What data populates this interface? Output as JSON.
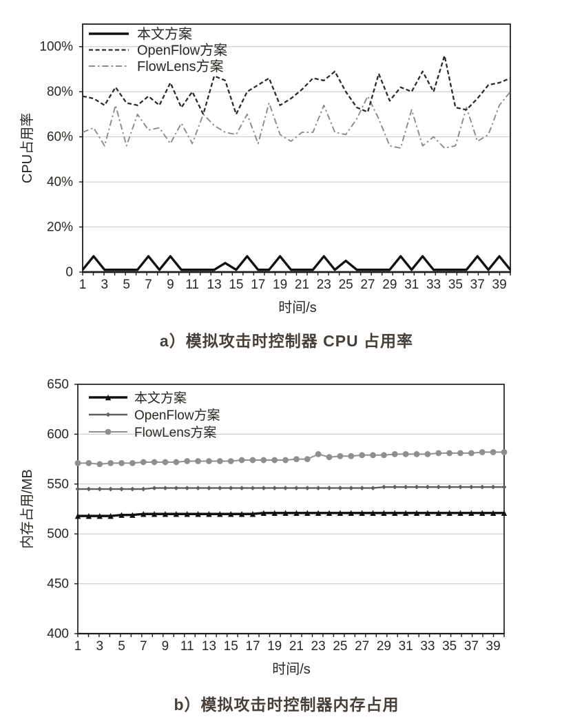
{
  "page": {
    "background": "#ffffff"
  },
  "captions": {
    "a": "a）模拟攻击时控制器 CPU 占用率",
    "b": "b）模拟攻击时控制器内存占用"
  },
  "colors": {
    "axis": "#1c1c1c",
    "grid": "#c6c6c6",
    "text": "#2a2723",
    "caption": "#463e38"
  },
  "chart_data": [
    {
      "id": "cpu",
      "type": "line",
      "title": "",
      "xlabel": "时间/s",
      "ylabel": "CPU占用率",
      "x": [
        1,
        2,
        3,
        4,
        5,
        6,
        7,
        8,
        9,
        10,
        11,
        12,
        13,
        14,
        15,
        16,
        17,
        18,
        19,
        20,
        21,
        22,
        23,
        24,
        25,
        26,
        27,
        28,
        29,
        30,
        31,
        32,
        33,
        34,
        35,
        36,
        37,
        38,
        39,
        40
      ],
      "x_tick_labels": [
        "1",
        "3",
        "5",
        "7",
        "9",
        "11",
        "13",
        "15",
        "17",
        "19",
        "21",
        "23",
        "25",
        "27",
        "29",
        "31",
        "33",
        "35",
        "37",
        "39"
      ],
      "y_ticks": [
        {
          "v": 0,
          "label": "0"
        },
        {
          "v": 20,
          "label": "20%"
        },
        {
          "v": 40,
          "label": "40%"
        },
        {
          "v": 60,
          "label": "60%"
        },
        {
          "v": 80,
          "label": "80%"
        },
        {
          "v": 100,
          "label": "100%"
        }
      ],
      "ylim": [
        0,
        110
      ],
      "grid": "horizontal",
      "legend_position": "top-left-inside",
      "series": [
        {
          "key": "flowlens",
          "name": "FlowLens方案",
          "color": "#8a8a8a",
          "dash": "dashdot",
          "width": 1.9,
          "marker": "none",
          "values": [
            62,
            64,
            56,
            74,
            56,
            70,
            63,
            64,
            57,
            66,
            57,
            70,
            65,
            62,
            61,
            70,
            57,
            75,
            61,
            58,
            62,
            62,
            74,
            62,
            61,
            68,
            78,
            68,
            56,
            55,
            72,
            56,
            60,
            55,
            56,
            73,
            58,
            61,
            74,
            80
          ]
        },
        {
          "key": "openflow",
          "name": "OpenFlow方案",
          "color": "#2b2b2b",
          "dash": "dashed",
          "width": 2.3,
          "marker": "none",
          "values": [
            78,
            77,
            74,
            82,
            75,
            74,
            78,
            74,
            84,
            73,
            80,
            70,
            87,
            85,
            70,
            80,
            83,
            86,
            74,
            77,
            81,
            86,
            85,
            89,
            80,
            73,
            71,
            88,
            76,
            82,
            80,
            89,
            80,
            96,
            73,
            72,
            77,
            83,
            84,
            86
          ]
        },
        {
          "key": "benwen",
          "name": "本文方案",
          "color": "#111111",
          "dash": "solid",
          "width": 3.4,
          "marker": "none",
          "values": [
            1,
            7,
            1,
            1,
            1,
            1,
            7,
            1,
            7,
            1,
            1,
            1,
            1,
            4,
            1,
            7,
            1,
            1,
            7,
            1,
            1,
            1,
            7,
            1,
            5,
            1,
            1,
            1,
            1,
            7,
            1,
            7,
            1,
            1,
            1,
            1,
            7,
            1,
            7,
            1
          ]
        }
      ],
      "legend_order": [
        "benwen",
        "openflow",
        "flowlens"
      ]
    },
    {
      "id": "memory",
      "type": "line",
      "title": "",
      "xlabel": "时间/s",
      "ylabel": "内存占用/MB",
      "x": [
        1,
        2,
        3,
        4,
        5,
        6,
        7,
        8,
        9,
        10,
        11,
        12,
        13,
        14,
        15,
        16,
        17,
        18,
        19,
        20,
        21,
        22,
        23,
        24,
        25,
        26,
        27,
        28,
        29,
        30,
        31,
        32,
        33,
        34,
        35,
        36,
        37,
        38,
        39,
        40
      ],
      "x_tick_labels": [
        "1",
        "3",
        "5",
        "7",
        "9",
        "11",
        "13",
        "15",
        "17",
        "19",
        "21",
        "23",
        "25",
        "27",
        "29",
        "31",
        "33",
        "35",
        "37",
        "39"
      ],
      "y_ticks": [
        {
          "v": 400,
          "label": "400"
        },
        {
          "v": 450,
          "label": "450"
        },
        {
          "v": 500,
          "label": "500"
        },
        {
          "v": 550,
          "label": "550"
        },
        {
          "v": 600,
          "label": "600"
        },
        {
          "v": 650,
          "label": "650"
        }
      ],
      "ylim": [
        400,
        650
      ],
      "grid": "horizontal",
      "legend_position": "top-left-inside",
      "series": [
        {
          "key": "flowlens",
          "name": "FlowLens方案",
          "color": "#8f8f8f",
          "dash": "solid",
          "width": 2,
          "marker": "circle",
          "values": [
            571,
            571,
            570,
            571,
            571,
            571,
            572,
            572,
            572,
            572,
            573,
            573,
            573,
            573,
            573,
            574,
            574,
            574,
            574,
            574,
            575,
            575,
            580,
            577,
            578,
            578,
            579,
            579,
            579,
            580,
            580,
            580,
            580,
            581,
            581,
            581,
            581,
            582,
            582,
            582
          ]
        },
        {
          "key": "openflow",
          "name": "OpenFlow方案",
          "color": "#5f5f5f",
          "dash": "solid",
          "width": 2.4,
          "marker": "diamond",
          "values": [
            545,
            545,
            545,
            545,
            545,
            545,
            545,
            546,
            546,
            546,
            546,
            546,
            546,
            546,
            546,
            546,
            546,
            546,
            546,
            546,
            546,
            546,
            546,
            546,
            546,
            546,
            546,
            546,
            547,
            547,
            547,
            547,
            547,
            547,
            547,
            547,
            547,
            547,
            547,
            547
          ]
        },
        {
          "key": "benwen",
          "name": "本文方案",
          "color": "#111111",
          "dash": "solid",
          "width": 3.4,
          "marker": "triangle",
          "values": [
            518,
            518,
            518,
            518,
            519,
            519,
            520,
            520,
            520,
            520,
            520,
            520,
            520,
            520,
            520,
            520,
            520,
            521,
            521,
            521,
            521,
            521,
            521,
            521,
            521,
            521,
            521,
            521,
            521,
            521,
            521,
            521,
            521,
            521,
            521,
            521,
            521,
            521,
            521,
            521
          ]
        }
      ],
      "legend_order": [
        "benwen",
        "openflow",
        "flowlens"
      ]
    }
  ]
}
